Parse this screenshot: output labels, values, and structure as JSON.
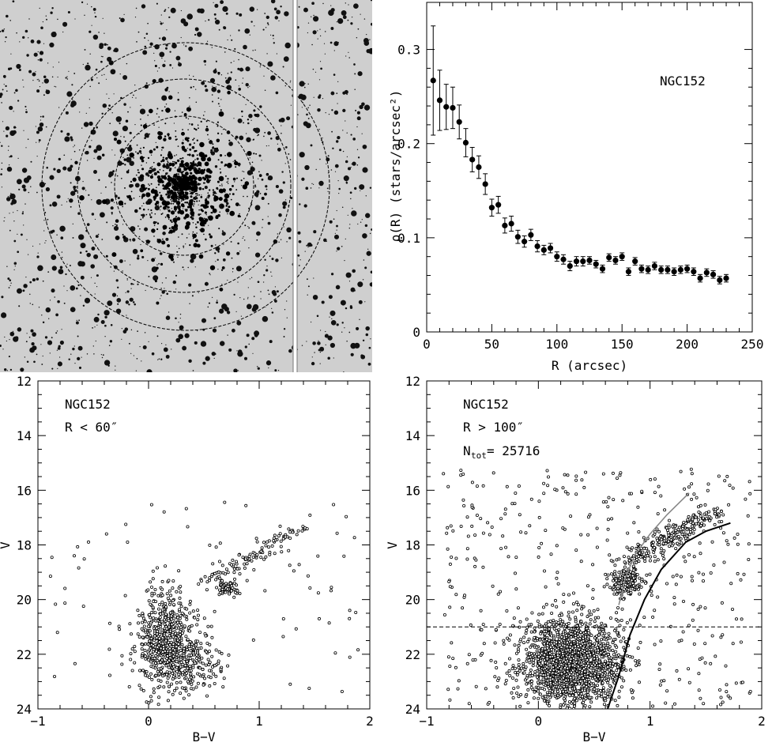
{
  "image_panel": {
    "cluster": "NGC152",
    "description_rings": 3
  },
  "chart_data": [
    {
      "type": "scatter",
      "panel": "radial-density-profile",
      "xlabel": "R (arcsec)",
      "ylabel": "ρ(R) (stars/arcsec²)",
      "annotation": "NGC152",
      "xlim": [
        0,
        250
      ],
      "ylim": [
        0,
        0.35
      ],
      "xticks": [
        0,
        50,
        100,
        150,
        200,
        250
      ],
      "yticks": [
        0,
        0.1,
        0.2,
        0.3
      ],
      "points": [
        {
          "x": 5,
          "y": 0.267,
          "err": 0.058
        },
        {
          "x": 10,
          "y": 0.246,
          "err": 0.032
        },
        {
          "x": 15,
          "y": 0.239,
          "err": 0.024
        },
        {
          "x": 20,
          "y": 0.238,
          "err": 0.022
        },
        {
          "x": 25,
          "y": 0.223,
          "err": 0.018
        },
        {
          "x": 30,
          "y": 0.201,
          "err": 0.015
        },
        {
          "x": 35,
          "y": 0.183,
          "err": 0.013
        },
        {
          "x": 40,
          "y": 0.175,
          "err": 0.012
        },
        {
          "x": 45,
          "y": 0.157,
          "err": 0.011
        },
        {
          "x": 50,
          "y": 0.132,
          "err": 0.009
        },
        {
          "x": 55,
          "y": 0.135,
          "err": 0.009
        },
        {
          "x": 60,
          "y": 0.113,
          "err": 0.008
        },
        {
          "x": 65,
          "y": 0.115,
          "err": 0.008
        },
        {
          "x": 70,
          "y": 0.101,
          "err": 0.007
        },
        {
          "x": 75,
          "y": 0.096,
          "err": 0.006
        },
        {
          "x": 80,
          "y": 0.103,
          "err": 0.006
        },
        {
          "x": 85,
          "y": 0.091,
          "err": 0.006
        },
        {
          "x": 90,
          "y": 0.087,
          "err": 0.005
        },
        {
          "x": 95,
          "y": 0.089,
          "err": 0.005
        },
        {
          "x": 100,
          "y": 0.08,
          "err": 0.005
        },
        {
          "x": 105,
          "y": 0.077,
          "err": 0.005
        },
        {
          "x": 110,
          "y": 0.07,
          "err": 0.005
        },
        {
          "x": 115,
          "y": 0.075,
          "err": 0.005
        },
        {
          "x": 120,
          "y": 0.075,
          "err": 0.005
        },
        {
          "x": 125,
          "y": 0.076,
          "err": 0.004
        },
        {
          "x": 130,
          "y": 0.072,
          "err": 0.004
        },
        {
          "x": 135,
          "y": 0.067,
          "err": 0.004
        },
        {
          "x": 140,
          "y": 0.079,
          "err": 0.004
        },
        {
          "x": 145,
          "y": 0.076,
          "err": 0.004
        },
        {
          "x": 150,
          "y": 0.08,
          "err": 0.004
        },
        {
          "x": 155,
          "y": 0.064,
          "err": 0.004
        },
        {
          "x": 160,
          "y": 0.075,
          "err": 0.004
        },
        {
          "x": 165,
          "y": 0.067,
          "err": 0.004
        },
        {
          "x": 170,
          "y": 0.066,
          "err": 0.004
        },
        {
          "x": 175,
          "y": 0.07,
          "err": 0.004
        },
        {
          "x": 180,
          "y": 0.066,
          "err": 0.004
        },
        {
          "x": 185,
          "y": 0.066,
          "err": 0.004
        },
        {
          "x": 190,
          "y": 0.064,
          "err": 0.004
        },
        {
          "x": 195,
          "y": 0.066,
          "err": 0.004
        },
        {
          "x": 200,
          "y": 0.067,
          "err": 0.004
        },
        {
          "x": 205,
          "y": 0.064,
          "err": 0.004
        },
        {
          "x": 210,
          "y": 0.057,
          "err": 0.004
        },
        {
          "x": 215,
          "y": 0.063,
          "err": 0.004
        },
        {
          "x": 220,
          "y": 0.061,
          "err": 0.004
        },
        {
          "x": 225,
          "y": 0.055,
          "err": 0.004
        },
        {
          "x": 230,
          "y": 0.057,
          "err": 0.004
        }
      ]
    },
    {
      "type": "scatter",
      "panel": "cmd-inner",
      "xlabel": "B−V",
      "ylabel": "V",
      "xlim": [
        -1,
        2
      ],
      "ylim": [
        24,
        12
      ],
      "xticks": [
        -1,
        0,
        1,
        2
      ],
      "yticks": [
        12,
        14,
        16,
        18,
        20,
        22,
        24
      ],
      "annotations": [
        "NGC152",
        "R < 60″"
      ],
      "components": [
        {
          "name": "main-sequence",
          "center": [
            0.15,
            21.3
          ],
          "spread": [
            0.12,
            0.85
          ],
          "count": 520
        },
        {
          "name": "ms-lower",
          "center": [
            0.3,
            22.4
          ],
          "spread": [
            0.18,
            0.55
          ],
          "count": 260
        },
        {
          "name": "red-clump",
          "center": [
            0.72,
            19.55
          ],
          "spread": [
            0.05,
            0.12
          ],
          "count": 70
        },
        {
          "name": "rgb",
          "from": [
            0.55,
            19.3
          ],
          "to": [
            1.4,
            17.3
          ],
          "spread": 0.06,
          "count": 110
        },
        {
          "name": "field",
          "box": [
            -0.9,
            1.9,
            16.4,
            23.4
          ],
          "count": 90
        }
      ]
    },
    {
      "type": "scatter",
      "panel": "cmd-outer",
      "xlabel": "B−V",
      "ylabel": "V",
      "xlim": [
        -1,
        2
      ],
      "ylim": [
        24,
        12
      ],
      "xticks": [
        -1,
        0,
        1,
        2
      ],
      "yticks": [
        12,
        14,
        16,
        18,
        20,
        22,
        24
      ],
      "annotations": [
        "NGC152",
        "R > 100″",
        "N",
        "tot",
        " = 25716"
      ],
      "dashed_line_V": 21,
      "components": [
        {
          "name": "field-ms",
          "center": [
            0.3,
            22.3
          ],
          "spread": [
            0.22,
            0.75
          ],
          "count": 1700
        },
        {
          "name": "red-clump",
          "center": [
            0.78,
            19.4
          ],
          "spread": [
            0.07,
            0.25
          ],
          "count": 180
        },
        {
          "name": "giant-branch",
          "from": [
            0.8,
            18.6
          ],
          "to": [
            1.55,
            16.8
          ],
          "spread": 0.08,
          "count": 260
        },
        {
          "name": "field",
          "box": [
            -0.85,
            1.9,
            15.2,
            23.9
          ],
          "count": 420
        }
      ],
      "isochrones": [
        {
          "name": "gray",
          "color": "#888888",
          "points": [
            [
              0.72,
              20.2
            ],
            [
              0.78,
              19.2
            ],
            [
              0.86,
              18.4
            ],
            [
              1.0,
              17.6
            ],
            [
              1.15,
              16.9
            ],
            [
              1.35,
              16.1
            ]
          ]
        },
        {
          "name": "black",
          "color": "#000000",
          "points": [
            [
              0.62,
              24.0
            ],
            [
              0.72,
              22.8
            ],
            [
              0.82,
              21.3
            ],
            [
              0.95,
              20.0
            ],
            [
              1.1,
              18.9
            ],
            [
              1.32,
              17.9
            ],
            [
              1.5,
              17.5
            ],
            [
              1.72,
              17.2
            ]
          ]
        }
      ]
    }
  ]
}
